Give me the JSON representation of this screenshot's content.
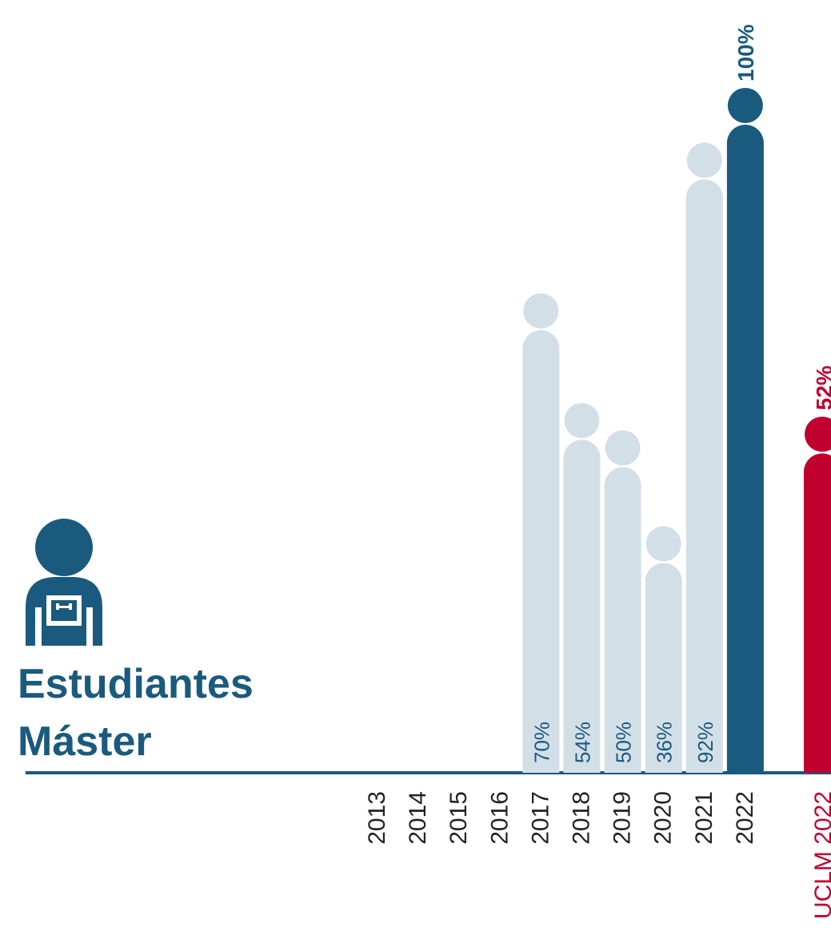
{
  "chart_data": {
    "type": "bar",
    "title": "Estudiantes\nMáster",
    "categories": [
      "2013",
      "2014",
      "2015",
      "2016",
      "2017",
      "2018",
      "2019",
      "2020",
      "2021",
      "2022"
    ],
    "values": [
      null,
      null,
      null,
      null,
      70,
      54,
      50,
      36,
      92,
      100
    ],
    "value_labels": [
      null,
      null,
      null,
      null,
      "70%",
      "54%",
      "50%",
      "36%",
      "92%",
      "100%"
    ],
    "colors": [
      null,
      null,
      null,
      null,
      "#d3dfe7",
      "#d3dfe7",
      "#d3dfe7",
      "#d3dfe7",
      "#d3dfe7",
      "#1a5a7e"
    ],
    "comparison": {
      "name": "UCLM 2022",
      "value": 52,
      "value_label": "52%",
      "color": "#c0002f"
    },
    "ylim": [
      0,
      100
    ]
  }
}
